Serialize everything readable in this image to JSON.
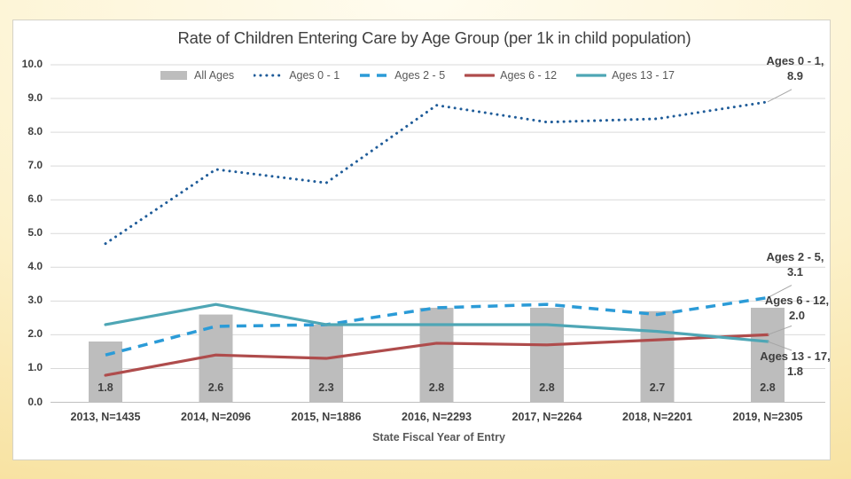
{
  "slide": {
    "background_inner": "#FFFCEF",
    "background_outer": "#F7E09C",
    "panel_background": "#FFFFFF",
    "panel_border": "#D5D2C6"
  },
  "colors": {
    "gridline": "#D9D9D9",
    "axis_line": "#BFBFBF",
    "tick_text": "#3F3F3F",
    "title_text": "#404040",
    "legend_text": "#595959",
    "leader_line": "#A6A6A6"
  },
  "chart_data": {
    "type": "combo-bar-line",
    "title": "Rate of Children Entering Care by Age Group (per 1k in child population)",
    "xlabel": "State Fiscal Year of Entry",
    "ylabel": "",
    "ylim": [
      0,
      10
    ],
    "grid": true,
    "legend_position": "top",
    "ytick_labels": [
      "0.0",
      "1.0",
      "2.0",
      "3.0",
      "4.0",
      "5.0",
      "6.0",
      "7.0",
      "8.0",
      "9.0",
      "10.0"
    ],
    "categories": [
      "2013, N=1435",
      "2014, N=2096",
      "2015, N=1886",
      "2016, N=2293",
      "2017, N=2264",
      "2018, N=2201",
      "2019, N=2305"
    ],
    "bar_series": {
      "name": "All Ages",
      "color": "#BDBDBD",
      "values": [
        1.8,
        2.6,
        2.3,
        2.8,
        2.8,
        2.7,
        2.8
      ],
      "value_labels": [
        "1.8",
        "2.6",
        "2.3",
        "2.8",
        "2.8",
        "2.7",
        "2.8"
      ]
    },
    "line_series": [
      {
        "name": "Ages 0 - 1",
        "color": "#1F5C99",
        "dash": "dotted",
        "values": [
          4.7,
          6.9,
          6.5,
          8.8,
          8.3,
          8.4,
          8.9
        ],
        "end_label_name": "Ages 0 - 1,",
        "end_label_value": "8.9"
      },
      {
        "name": "Ages 2 - 5",
        "color": "#2B9BD7",
        "dash": "dashed",
        "values": [
          1.4,
          2.25,
          2.3,
          2.8,
          2.9,
          2.6,
          3.1
        ],
        "end_label_name": "Ages 2 - 5,",
        "end_label_value": "3.1"
      },
      {
        "name": "Ages 6 - 12",
        "color": "#AF4C4C",
        "dash": "solid",
        "values": [
          0.8,
          1.4,
          1.3,
          1.75,
          1.7,
          1.85,
          2.0
        ],
        "end_label_name": "Ages 6 - 12,",
        "end_label_value": "2.0"
      },
      {
        "name": "Ages 13 - 17",
        "color": "#4EA6B5",
        "dash": "solid",
        "values": [
          2.3,
          2.9,
          2.3,
          2.3,
          2.3,
          2.1,
          1.8
        ],
        "end_label_name": "Ages 13 - 17,",
        "end_label_value": "1.8"
      }
    ]
  }
}
